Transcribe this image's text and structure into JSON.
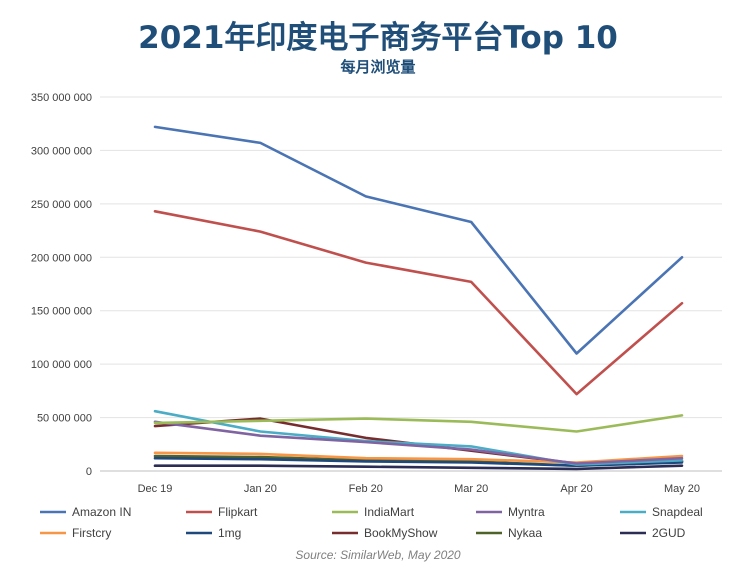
{
  "header": {
    "title": "2021年印度电子商务平台Top 10",
    "subtitle": "每月浏览量"
  },
  "source": "Source: SimilarWeb, May 2020",
  "chart_data": {
    "type": "line",
    "title": "2021年印度电子商务平台Top 10",
    "subtitle": "每月浏览量",
    "xlabel": "",
    "ylabel": "",
    "categories": [
      "Dec 19",
      "Jan 20",
      "Feb 20",
      "Mar 20",
      "Apr 20",
      "May 20"
    ],
    "yticks": [
      "0",
      "50 000 000",
      "100 000 000",
      "150 000 000",
      "200 000 000",
      "250 000 000",
      "300 000 000",
      "350 000 000"
    ],
    "ylim": [
      0,
      350000000
    ],
    "grid": true,
    "legend_position": "bottom",
    "series": [
      {
        "name": "Amazon IN",
        "color": "#4a74b4",
        "values": [
          322000000,
          307000000,
          257000000,
          233000000,
          110000000,
          200000000
        ]
      },
      {
        "name": "Flipkart",
        "color": "#c0504d",
        "values": [
          243000000,
          224000000,
          195000000,
          177000000,
          72000000,
          157000000
        ]
      },
      {
        "name": "IndiaMart",
        "color": "#9bbb59",
        "values": [
          45000000,
          47000000,
          49000000,
          46000000,
          37000000,
          52000000
        ]
      },
      {
        "name": "Myntra",
        "color": "#8064a2",
        "values": [
          46000000,
          33000000,
          27000000,
          20000000,
          7000000,
          12000000
        ]
      },
      {
        "name": "Snapdeal",
        "color": "#4bacc6",
        "values": [
          56000000,
          37000000,
          28000000,
          23000000,
          6000000,
          10000000
        ]
      },
      {
        "name": "Firstcry",
        "color": "#f79646",
        "values": [
          17000000,
          16000000,
          12000000,
          11000000,
          8000000,
          14000000
        ]
      },
      {
        "name": "1mg",
        "color": "#1f497d",
        "values": [
          12000000,
          11000000,
          9000000,
          8000000,
          5000000,
          8000000
        ]
      },
      {
        "name": "BookMyShow",
        "color": "#772d2d",
        "values": [
          42000000,
          49000000,
          31000000,
          19000000,
          7000000,
          9000000
        ]
      },
      {
        "name": "Nykaa",
        "color": "#4f6228",
        "values": [
          14000000,
          13000000,
          10000000,
          9000000,
          5000000,
          9000000
        ]
      },
      {
        "name": "2GUD",
        "color": "#2b2d55",
        "values": [
          5000000,
          5000000,
          4000000,
          3000000,
          2000000,
          5000000
        ]
      }
    ]
  }
}
